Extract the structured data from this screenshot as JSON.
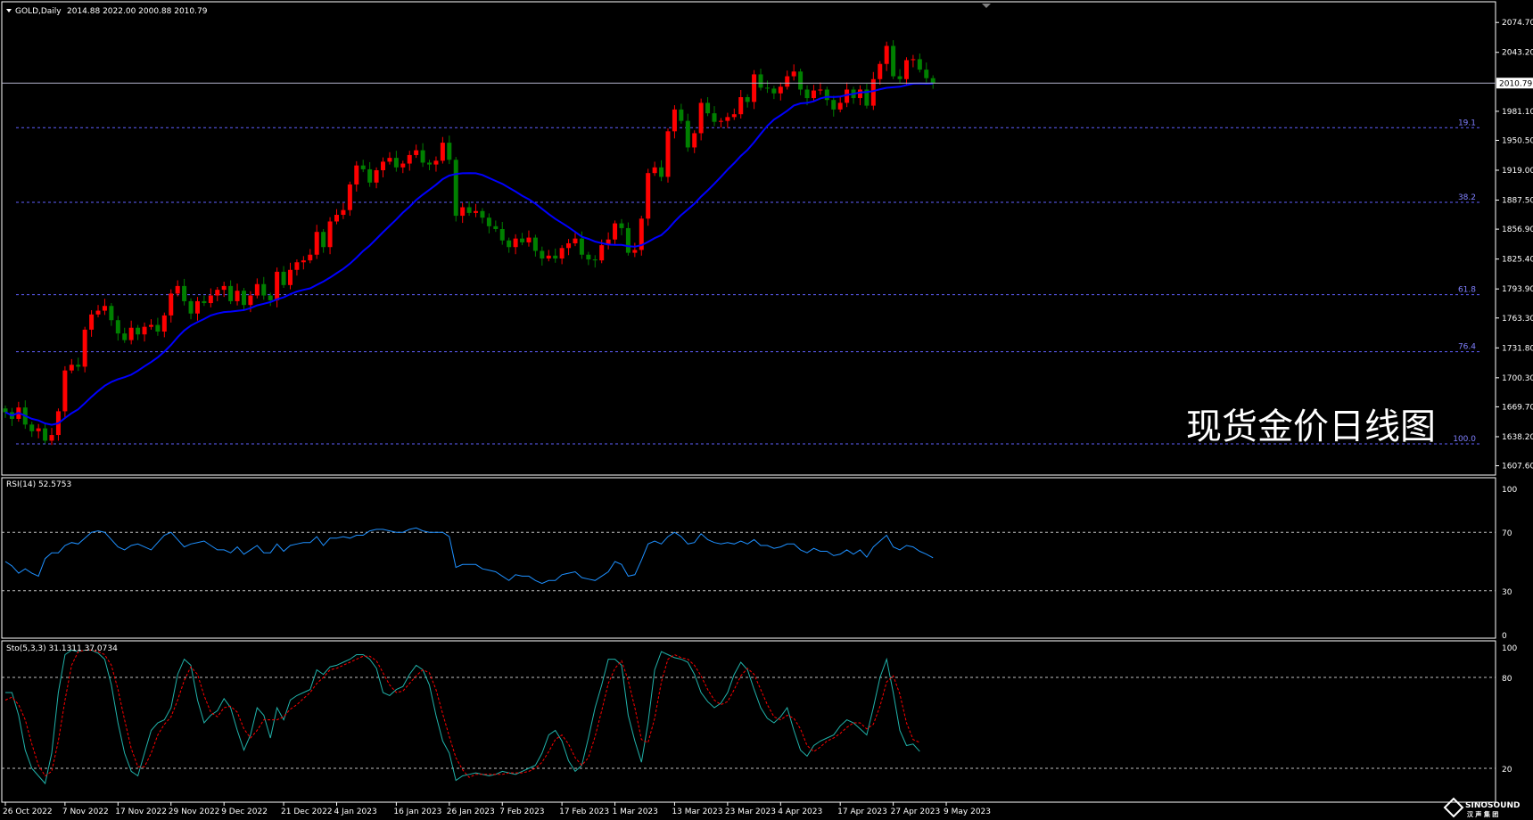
{
  "header": {
    "symbol_label": "GOLD,Daily",
    "ohlc_label": "2014.88 2022.00 2000.88 2010.79"
  },
  "watermark": "现货金价日线图",
  "logo": {
    "top": "SINOSOUND",
    "bottom": "汉 声 集 团"
  },
  "colors": {
    "background": "#000000",
    "up_candle": "#ff0000",
    "down_candle": "#008000",
    "ma_line": "#0000ff",
    "rsi_line": "#1e90ff",
    "stoch_main": "#20b2aa",
    "stoch_signal": "#ff0000",
    "fib_line": "#6060ff",
    "grid_text": "#ffffff"
  },
  "chart_data": [
    {
      "type": "candlestick",
      "title": "GOLD,Daily",
      "current_price": 2010.79,
      "current_price_label": "2010.79",
      "y_ticks": [
        "2074.70",
        "2043.20",
        "1981.10",
        "1950.50",
        "1919.00",
        "1887.50",
        "1856.90",
        "1825.40",
        "1793.90",
        "1763.30",
        "1731.80",
        "1700.30",
        "1669.70",
        "1638.20",
        "1607.60"
      ],
      "ylim": [
        1600.6,
        2087.1
      ],
      "x_ticks": [
        {
          "i": 0,
          "label": "26 Oct 2022"
        },
        {
          "i": 9,
          "label": "7 Nov 2022"
        },
        {
          "i": 17,
          "label": "17 Nov 2022"
        },
        {
          "i": 25,
          "label": "29 Nov 2022"
        },
        {
          "i": 33,
          "label": "9 Dec 2022"
        },
        {
          "i": 42,
          "label": "21 Dec 2022"
        },
        {
          "i": 50,
          "label": "4 Jan 2023"
        },
        {
          "i": 59,
          "label": "16 Jan 2023"
        },
        {
          "i": 67,
          "label": "26 Jan 2023"
        },
        {
          "i": 75,
          "label": "7 Feb 2023"
        },
        {
          "i": 84,
          "label": "17 Feb 2023"
        },
        {
          "i": 92,
          "label": "1 Mar 2023"
        },
        {
          "i": 101,
          "label": "13 Mar 2023"
        },
        {
          "i": 109,
          "label": "23 Mar 2023"
        },
        {
          "i": 117,
          "label": "4 Apr 2023"
        },
        {
          "i": 126,
          "label": "17 Apr 2023"
        },
        {
          "i": 134,
          "label": "27 Apr 2023"
        },
        {
          "i": 142,
          "label": "9 May 2023"
        }
      ],
      "closes": [
        1664,
        1657,
        1669,
        1651,
        1644,
        1647,
        1634,
        1640,
        1665,
        1708,
        1714,
        1712,
        1751,
        1767,
        1771,
        1776,
        1761,
        1747,
        1740,
        1753,
        1746,
        1754,
        1756,
        1749,
        1766,
        1789,
        1797,
        1781,
        1768,
        1781,
        1779,
        1787,
        1793,
        1797,
        1781,
        1792,
        1777,
        1787,
        1799,
        1787,
        1782,
        1812,
        1798,
        1814,
        1822,
        1824,
        1830,
        1854,
        1838,
        1865,
        1872,
        1877,
        1904,
        1924,
        1920,
        1906,
        1919,
        1928,
        1932,
        1922,
        1926,
        1935,
        1940,
        1927,
        1925,
        1929,
        1948,
        1930,
        1871,
        1880,
        1874,
        1876,
        1869,
        1860,
        1857,
        1845,
        1838,
        1847,
        1843,
        1848,
        1834,
        1826,
        1829,
        1826,
        1837,
        1842,
        1847,
        1830,
        1825,
        1824,
        1840,
        1846,
        1863,
        1858,
        1832,
        1835,
        1868,
        1916,
        1922,
        1912,
        1960,
        1983,
        1971,
        1943,
        1958,
        1990,
        1979,
        1970,
        1971,
        1975,
        1978,
        1996,
        1991,
        2020,
        2006,
        2005,
        2000,
        2007,
        2018,
        2023,
        2004,
        1995,
        2003,
        2004,
        1993,
        1983,
        1990,
        2004,
        1995,
        2004,
        1987,
        2015,
        2031,
        2050,
        2018,
        2015,
        2035,
        2036,
        2025,
        2016,
        2010.79
      ],
      "fibonacci": [
        {
          "level": "19.1",
          "price": 1963.8
        },
        {
          "level": "38.2",
          "price": 1885.2
        },
        {
          "level": "61.8",
          "price": 1787.9
        },
        {
          "level": "76.4",
          "price": 1727.8
        },
        {
          "level": "100.0",
          "price": 1630.6
        }
      ]
    },
    {
      "type": "line",
      "title": "RSI(14) 52.5753",
      "ylim": [
        0,
        100
      ],
      "y_ticks": [
        "100",
        "70",
        "30",
        "0"
      ],
      "levels": [
        70,
        30
      ],
      "values": [
        50,
        47,
        42,
        45,
        42,
        40,
        52,
        56,
        56,
        61,
        63,
        62,
        66,
        70,
        71,
        70,
        65,
        60,
        58,
        61,
        62,
        60,
        58,
        63,
        68,
        70,
        65,
        60,
        62,
        63,
        64,
        61,
        58,
        58,
        56,
        60,
        55,
        58,
        61,
        56,
        56,
        62,
        57,
        61,
        62,
        63,
        63,
        67,
        61,
        66,
        66,
        67,
        66,
        68,
        68,
        71,
        72,
        72,
        71,
        70,
        70,
        72,
        73,
        71,
        70,
        70,
        70,
        67,
        46,
        48,
        48,
        48,
        45,
        44,
        43,
        40,
        37,
        41,
        40,
        40,
        37,
        35,
        37,
        37,
        41,
        42,
        43,
        39,
        38,
        37,
        40,
        43,
        50,
        48,
        40,
        41,
        51,
        62,
        64,
        62,
        67,
        70,
        67,
        62,
        63,
        69,
        65,
        63,
        62,
        63,
        62,
        64,
        62,
        65,
        61,
        61,
        59,
        60,
        62,
        62,
        58,
        56,
        59,
        57,
        57,
        54,
        55,
        58,
        55,
        58,
        53,
        60,
        64,
        68,
        60,
        58,
        61,
        60,
        57,
        55,
        52.5753
      ]
    },
    {
      "type": "line",
      "title": "Sto(5,3,3) 31.1311 37.0734",
      "ylim": [
        0,
        100
      ],
      "y_ticks": [
        "100",
        "80",
        "20"
      ],
      "levels": [
        80,
        20
      ],
      "series": [
        {
          "name": "main",
          "values": [
            70,
            70,
            55,
            32,
            20,
            15,
            10,
            30,
            70,
            95,
            98,
            97,
            98,
            98,
            96,
            92,
            75,
            50,
            30,
            18,
            15,
            30,
            45,
            50,
            52,
            60,
            82,
            92,
            88,
            65,
            50,
            55,
            58,
            66,
            60,
            45,
            32,
            42,
            60,
            55,
            40,
            60,
            52,
            65,
            68,
            70,
            72,
            85,
            82,
            87,
            88,
            90,
            92,
            95,
            95,
            92,
            86,
            70,
            68,
            72,
            74,
            82,
            88,
            85,
            75,
            55,
            38,
            30,
            12,
            15,
            16,
            17,
            16,
            15,
            16,
            18,
            17,
            16,
            18,
            20,
            22,
            30,
            42,
            45,
            38,
            25,
            18,
            22,
            40,
            60,
            75,
            92,
            92,
            88,
            55,
            38,
            24,
            50,
            85,
            97,
            95,
            93,
            92,
            90,
            82,
            70,
            64,
            60,
            63,
            70,
            82,
            90,
            85,
            72,
            60,
            53,
            50,
            54,
            60,
            45,
            32,
            28,
            35,
            38,
            40,
            42,
            48,
            52,
            50,
            46,
            42,
            60,
            80,
            92,
            70,
            45,
            35,
            36,
            31.1311
          ]
        },
        {
          "name": "signal",
          "values": [
            65,
            67,
            62,
            52,
            36,
            22,
            15,
            18,
            38,
            65,
            88,
            97,
            98,
            98,
            97,
            95,
            88,
            72,
            52,
            33,
            21,
            21,
            30,
            42,
            49,
            54,
            65,
            78,
            87,
            82,
            68,
            57,
            54,
            60,
            61,
            57,
            46,
            40,
            45,
            52,
            52,
            52,
            54,
            59,
            62,
            66,
            70,
            76,
            80,
            85,
            86,
            88,
            90,
            92,
            94,
            94,
            91,
            83,
            75,
            70,
            71,
            76,
            81,
            85,
            83,
            72,
            56,
            41,
            27,
            19,
            14,
            16,
            16,
            16,
            16,
            16,
            17,
            17,
            17,
            18,
            20,
            24,
            31,
            39,
            42,
            36,
            27,
            22,
            27,
            41,
            58,
            76,
            86,
            91,
            78,
            60,
            39,
            37,
            53,
            77,
            92,
            95,
            93,
            92,
            88,
            81,
            72,
            65,
            62,
            64,
            72,
            81,
            86,
            82,
            72,
            62,
            54,
            52,
            55,
            53,
            46,
            35,
            31,
            34,
            38,
            40,
            43,
            47,
            50,
            50,
            46,
            49,
            61,
            77,
            81,
            69,
            50,
            39,
            37.0734
          ]
        }
      ]
    }
  ]
}
